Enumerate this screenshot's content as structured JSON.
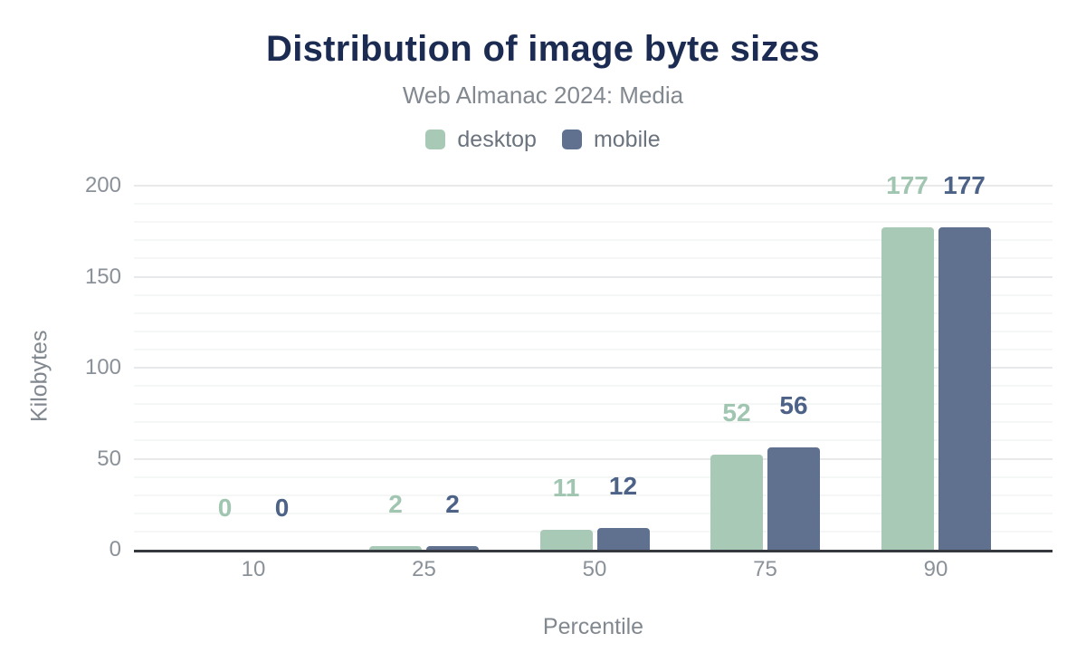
{
  "chart_data": {
    "type": "bar",
    "title": "Distribution of image byte sizes",
    "subtitle": "Web Almanac 2024: Media",
    "categories": [
      "10",
      "25",
      "50",
      "75",
      "90"
    ],
    "series": [
      {
        "name": "desktop",
        "color": "#a8c9b6",
        "label_color": "#a0c5b0",
        "values": [
          0,
          2,
          11,
          52,
          177
        ]
      },
      {
        "name": "mobile",
        "color": "#5f718f",
        "label_color": "#4d6287",
        "values": [
          0,
          2,
          12,
          56,
          177
        ]
      }
    ],
    "xlabel": "Percentile",
    "ylabel": "Kilobytes",
    "ylim": [
      0,
      200
    ],
    "yticks": [
      0,
      50,
      100,
      150,
      200
    ],
    "minor_gridline_step": 10,
    "grid": true,
    "legend_position": "top",
    "bar_value_labels_shown": true
  },
  "theme": {
    "title_color": "#1b2b52",
    "subtitle_color": "#82888f",
    "axis_text_color": "#8b9199",
    "axis_title_color": "#82888f",
    "legend_text_color": "#6b737d",
    "axis_line_color": "#35393f",
    "grid_major_color": "#e7e9ea",
    "grid_minor_color": "#f5f6f6",
    "background": "#ffffff"
  }
}
